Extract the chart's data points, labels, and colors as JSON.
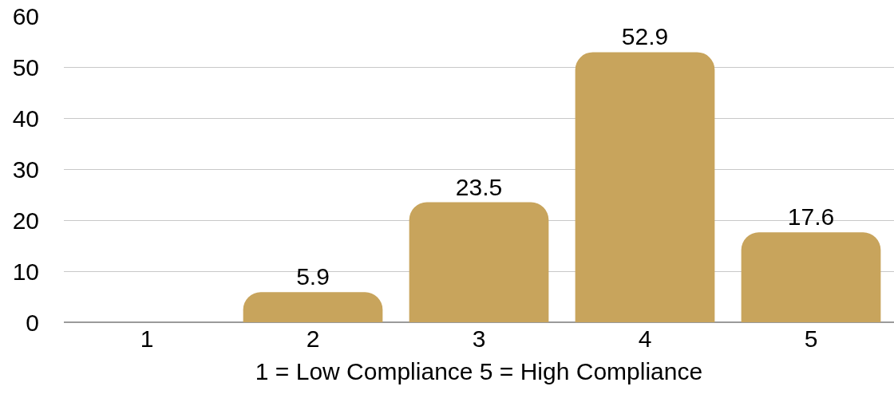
{
  "chart_data": {
    "type": "bar",
    "categories": [
      "1",
      "2",
      "3",
      "4",
      "5"
    ],
    "values": [
      0,
      5.9,
      23.5,
      52.9,
      17.6
    ],
    "value_labels": [
      null,
      "5.9",
      "23.5",
      "52.9",
      "17.6"
    ],
    "color": "#c8a45c",
    "xlabel": "1 = Low Compliance 5 = High Compliance",
    "ylim": [
      0,
      60
    ],
    "yticks": [
      0,
      10,
      20,
      30,
      40,
      50,
      60
    ],
    "grid": "y",
    "legend": false
  }
}
